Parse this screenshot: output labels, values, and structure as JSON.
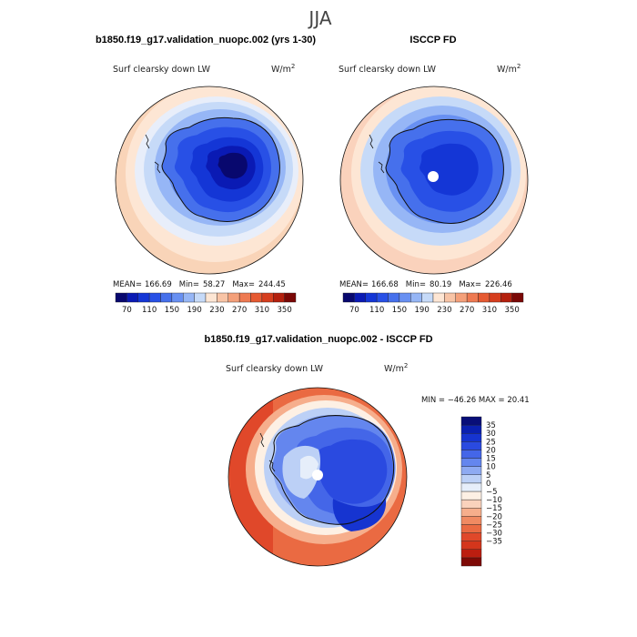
{
  "season": "JJA",
  "variable_label": "Surf clearsky down LW",
  "units_main": "W/m",
  "units_sup": "2",
  "panels": [
    {
      "title": "b1850.f19_g17.validation_nuopc.002 (yrs 1-30)",
      "mean_label": "MEAN=",
      "mean": "166.69",
      "min_label": "Min=",
      "min": "58.27",
      "max_label": "Max=",
      "max": "244.45"
    },
    {
      "title": "ISCCP FD",
      "mean_label": "MEAN=",
      "mean": "166.68",
      "min_label": "Min=",
      "min": "80.19",
      "max_label": "Max=",
      "max": "226.46"
    }
  ],
  "diff": {
    "title": "b1850.f19_g17.validation_nuopc.002 - ISCCP FD",
    "minmax": "MIN = −46.26 MAX =  20.41"
  },
  "field_colorbar": {
    "colors": [
      "#08086e",
      "#0a1ab4",
      "#1436d6",
      "#2850e6",
      "#4670ec",
      "#6890f2",
      "#96b6f6",
      "#c6daf8",
      "#fde6d4",
      "#f8c4a6",
      "#f4a07a",
      "#ee7a52",
      "#e65a32",
      "#d63e1e",
      "#b4200e",
      "#7a0806"
    ],
    "labels": [
      "70",
      "110",
      "150",
      "190",
      "230",
      "270",
      "310",
      "350"
    ]
  },
  "diff_colorbar": {
    "colors": [
      "#080e78",
      "#0a20b0",
      "#1634d0",
      "#2a4ae0",
      "#4466e8",
      "#6486ee",
      "#8eaaf2",
      "#bcd0f6",
      "#e6eefa",
      "#fdf0e4",
      "#fad2bc",
      "#f6ae8c",
      "#f08a62",
      "#ea6a42",
      "#e0482a",
      "#d4361c",
      "#bc1e10",
      "#7e0a06"
    ],
    "labels": [
      "35",
      "30",
      "25",
      "20",
      "15",
      "10",
      "5",
      "0",
      "−5",
      "−10",
      "−15",
      "−20",
      "−25",
      "−30",
      "−35"
    ]
  }
}
